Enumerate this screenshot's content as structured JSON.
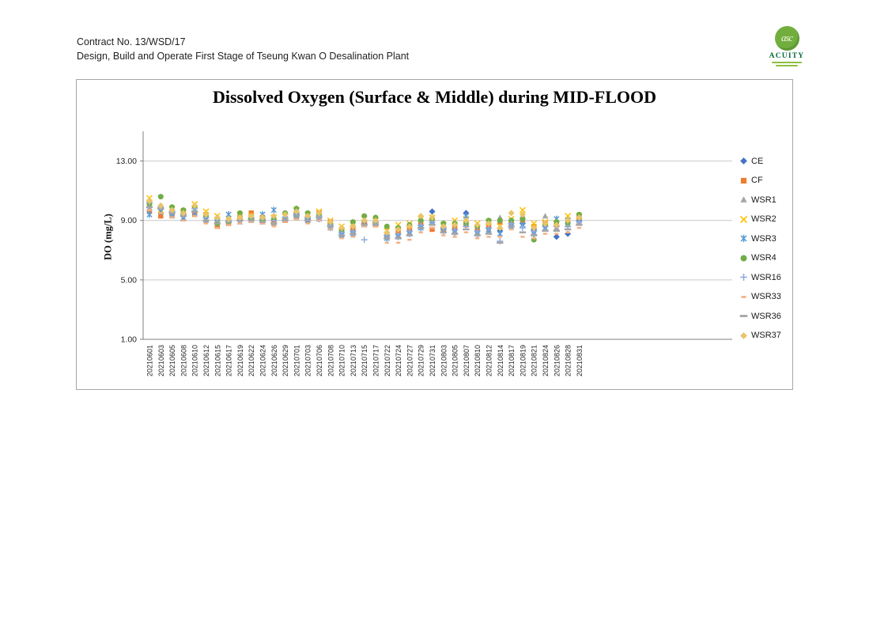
{
  "page": {
    "header": {
      "line1": "Contract No. 13/WSD/17",
      "line2": "Design, Build and Operate First Stage of Tseung Kwan O Desalination Plant"
    },
    "logo": {
      "monogram": "asc",
      "name": "ACUITY"
    }
  },
  "chart_data": {
    "type": "scatter",
    "title": "Dissolved Oxygen (Surface & Middle) during MID-FLOOD",
    "xlabel": "",
    "ylabel": "DO (mg/L)",
    "ylim": [
      1,
      15
    ],
    "y_tick_values": [
      13,
      9,
      5,
      1
    ],
    "y_tick_labels": [
      "13.00",
      "9.00",
      "5.00",
      "1.00"
    ],
    "grid": true,
    "legend_position": "right",
    "x_tick_rotation": 90,
    "colors": {
      "gridline": "#C9C9C9",
      "axis": "#7F7F7F",
      "tick_text": "#262626"
    },
    "categories": [
      "20210601",
      "20210603",
      "20210605",
      "20210608",
      "20210610",
      "20210612",
      "20210615",
      "20210617",
      "20210619",
      "20210622",
      "20210624",
      "20210626",
      "20210629",
      "20210701",
      "20210703",
      "20210706",
      "20210708",
      "20210710",
      "20210713",
      "20210715",
      "20210717",
      "20210722",
      "20210724",
      "20210727",
      "20210729",
      "20210731",
      "20210803",
      "20210805",
      "20210807",
      "20210810",
      "20210812",
      "20210814",
      "20210817",
      "20210819",
      "20210821",
      "20210824",
      "20210826",
      "20210828",
      "20210831"
    ],
    "series": [
      {
        "name": "CE",
        "marker": "diamond",
        "color": "#4472C4",
        "values": [
          9.9,
          9.8,
          9.5,
          9.3,
          9.6,
          9.2,
          9.0,
          8.9,
          9.0,
          9.1,
          9.0,
          9.0,
          9.1,
          9.4,
          9.1,
          9.3,
          8.7,
          8.2,
          8.3,
          8.8,
          8.8,
          8.0,
          8.1,
          8.3,
          8.7,
          9.6,
          8.4,
          8.4,
          9.5,
          8.3,
          8.5,
          8.3,
          8.8,
          8.8,
          8.4,
          8.6,
          7.9,
          8.1,
          9.0
        ]
      },
      {
        "name": "CF",
        "marker": "square",
        "color": "#ED7D31",
        "values": [
          9.6,
          9.3,
          9.4,
          9.5,
          9.4,
          9.4,
          8.6,
          8.8,
          9.2,
          9.5,
          9.2,
          8.9,
          9.0,
          9.2,
          9.0,
          9.5,
          8.9,
          8.4,
          8.5,
          8.9,
          8.7,
          7.9,
          8.3,
          8.5,
          8.9,
          8.4,
          8.4,
          8.6,
          8.7,
          8.5,
          8.7,
          8.9,
          8.9,
          9.0,
          8.6,
          8.8,
          8.7,
          8.9,
          9.2
        ]
      },
      {
        "name": "WSR1",
        "marker": "triangle",
        "color": "#A5A5A5",
        "values": [
          9.8,
          9.9,
          9.3,
          9.1,
          9.7,
          9.0,
          9.1,
          9.0,
          8.9,
          9.0,
          8.9,
          8.8,
          9.2,
          9.5,
          9.2,
          9.2,
          8.6,
          8.1,
          8.2,
          8.7,
          8.9,
          8.1,
          8.0,
          8.2,
          8.6,
          9.0,
          8.5,
          8.3,
          8.9,
          8.2,
          8.4,
          9.2,
          8.7,
          9.3,
          8.2,
          9.3,
          8.5,
          8.7,
          8.9
        ]
      },
      {
        "name": "WSR2",
        "marker": "x",
        "color": "#FFC000",
        "values": [
          10.5,
          9.7,
          9.8,
          9.6,
          10.1,
          9.6,
          9.3,
          9.1,
          9.4,
          9.3,
          9.1,
          9.2,
          9.3,
          9.7,
          9.4,
          9.6,
          9.0,
          8.6,
          8.8,
          9.1,
          9.0,
          8.3,
          8.7,
          8.8,
          9.1,
          9.2,
          8.7,
          9.0,
          9.1,
          8.8,
          8.9,
          8.6,
          9.1,
          9.7,
          8.8,
          8.9,
          8.8,
          9.3,
          9.3
        ]
      },
      {
        "name": "WSR3",
        "marker": "asterisk",
        "color": "#5B9BD5",
        "values": [
          9.4,
          9.6,
          9.5,
          9.2,
          9.5,
          9.1,
          8.9,
          9.4,
          9.1,
          9.2,
          9.4,
          9.7,
          9.1,
          9.3,
          9.0,
          9.1,
          8.5,
          8.0,
          8.1,
          8.8,
          8.8,
          7.8,
          7.9,
          8.1,
          8.5,
          8.9,
          8.3,
          8.2,
          9.3,
          8.1,
          8.3,
          8.1,
          8.6,
          8.7,
          8.1,
          8.5,
          9.1,
          9.0,
          9.1
        ]
      },
      {
        "name": "WSR4",
        "marker": "circle",
        "color": "#70AD47",
        "values": [
          10.1,
          10.6,
          9.9,
          9.7,
          9.9,
          9.3,
          8.8,
          8.9,
          9.5,
          9.1,
          9.0,
          9.1,
          9.5,
          9.8,
          9.5,
          9.4,
          8.8,
          8.3,
          8.9,
          9.3,
          9.2,
          8.6,
          8.5,
          8.7,
          9.0,
          9.1,
          8.8,
          8.8,
          8.8,
          8.6,
          9.0,
          9.0,
          9.0,
          9.1,
          7.7,
          8.7,
          8.9,
          8.8,
          9.4
        ]
      },
      {
        "name": "WSR16",
        "marker": "plus",
        "color": "#8FAADC",
        "values": [
          10.2,
          9.9,
          9.6,
          9.4,
          9.8,
          9.2,
          9.0,
          9.0,
          9.0,
          9.2,
          9.1,
          9.0,
          9.2,
          9.5,
          9.2,
          9.3,
          8.7,
          8.2,
          8.3,
          7.7,
          8.9,
          8.0,
          8.1,
          8.3,
          8.7,
          8.9,
          8.5,
          8.4,
          8.6,
          8.3,
          8.5,
          7.6,
          8.8,
          8.5,
          8.3,
          8.6,
          8.6,
          8.6,
          8.9
        ]
      },
      {
        "name": "WSR33",
        "marker": "dash",
        "color": "#F4B183",
        "values": [
          9.7,
          9.5,
          9.2,
          9.0,
          9.3,
          8.8,
          8.5,
          8.7,
          8.8,
          8.9,
          8.8,
          8.6,
          8.9,
          9.1,
          8.8,
          9.0,
          8.4,
          7.8,
          7.9,
          8.6,
          8.6,
          7.5,
          7.5,
          7.7,
          8.2,
          8.5,
          8.0,
          7.9,
          8.2,
          7.8,
          7.9,
          7.9,
          8.4,
          7.9,
          7.8,
          8.1,
          8.1,
          8.2,
          8.5
        ]
      },
      {
        "name": "WSR36",
        "marker": "longdash",
        "color": "#A6A6A6",
        "values": [
          9.9,
          9.8,
          9.5,
          9.3,
          9.6,
          9.0,
          8.8,
          8.9,
          9.0,
          9.0,
          8.9,
          8.8,
          9.0,
          9.3,
          9.0,
          9.2,
          8.6,
          8.0,
          8.1,
          8.7,
          8.7,
          7.8,
          7.8,
          8.0,
          8.5,
          8.7,
          8.2,
          8.1,
          8.4,
          8.0,
          8.1,
          7.5,
          8.6,
          8.2,
          8.0,
          8.3,
          8.3,
          8.4,
          8.7
        ]
      },
      {
        "name": "WSR37",
        "marker": "diamond",
        "color": "#E9C46A",
        "values": [
          10.3,
          10.0,
          9.7,
          9.5,
          10.0,
          9.4,
          9.2,
          9.1,
          9.2,
          9.3,
          9.2,
          9.3,
          9.4,
          9.6,
          9.3,
          9.5,
          8.9,
          8.5,
          8.6,
          9.0,
          9.0,
          8.2,
          8.4,
          8.6,
          9.3,
          9.2,
          8.6,
          8.7,
          9.0,
          8.7,
          8.8,
          8.5,
          9.5,
          9.4,
          8.5,
          8.8,
          8.7,
          9.0,
          9.2
        ]
      }
    ]
  }
}
